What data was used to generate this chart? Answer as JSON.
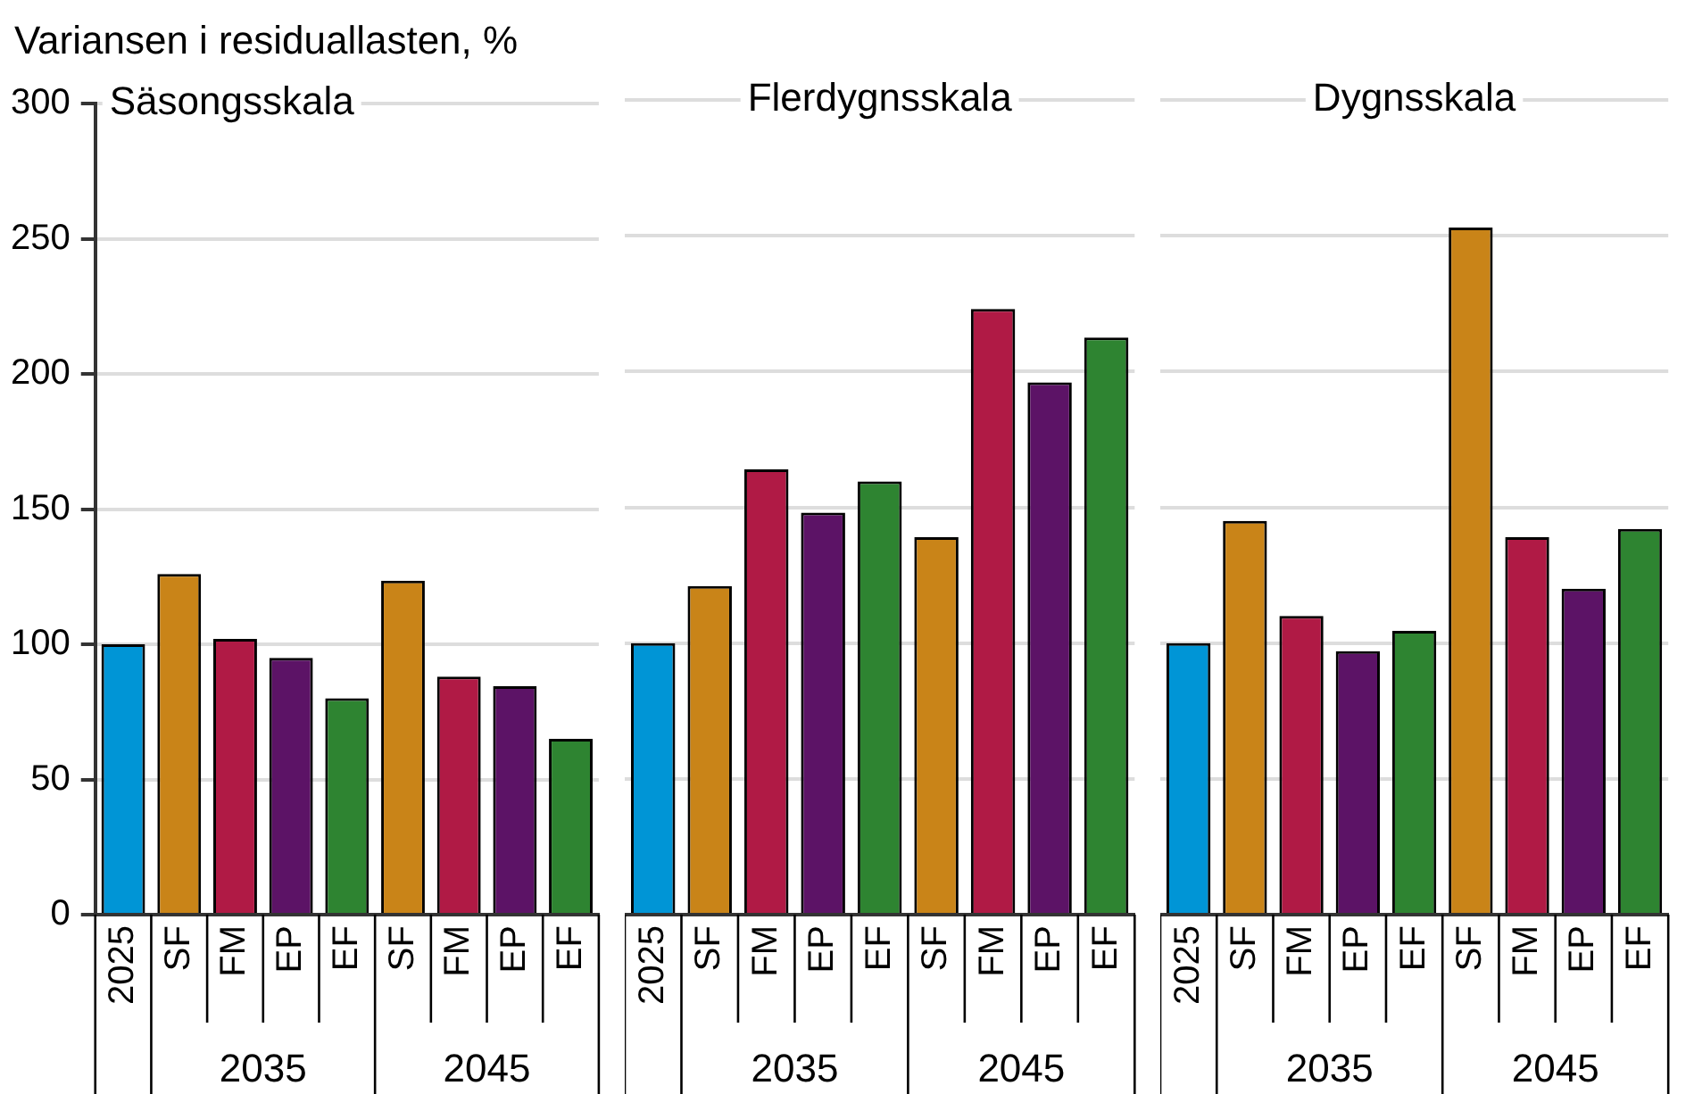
{
  "chart_data": [
    {
      "type": "bar",
      "title": "Säsongsskala",
      "ylabel": "Variansen i residuallasten, %",
      "categories": [
        "2025",
        "SF",
        "FM",
        "EP",
        "EF",
        "SF",
        "FM",
        "EP",
        "EF"
      ],
      "values": [
        100,
        126,
        102,
        95,
        80,
        123.5,
        88,
        84.5,
        65
      ],
      "colors": [
        "#0095d6",
        "#c98418",
        "#b01a45",
        "#5c1366",
        "#2e8431",
        "#c98418",
        "#b01a45",
        "#5c1366",
        "#2e8431"
      ],
      "ylim": [
        0,
        300
      ],
      "yticks": [
        0,
        50,
        100,
        150,
        200,
        250,
        300
      ],
      "grid": "y",
      "annotations": [
        "2035",
        "2045"
      ]
    },
    {
      "type": "bar",
      "title": "Flerdygnsskala",
      "categories": [
        "2025",
        "SF",
        "FM",
        "EP",
        "EF",
        "SF",
        "FM",
        "EP",
        "EF"
      ],
      "values": [
        100,
        121,
        164,
        148,
        159.5,
        139,
        223,
        196,
        212.5
      ],
      "colors": [
        "#0095d6",
        "#c98418",
        "#b01a45",
        "#5c1366",
        "#2e8431",
        "#c98418",
        "#b01a45",
        "#5c1366",
        "#2e8431"
      ],
      "ylim": [
        0,
        300
      ],
      "yticks": [
        0,
        50,
        100,
        150,
        200,
        250,
        300
      ],
      "grid": "y",
      "tick_labels": "x",
      "annotations": [
        "2035",
        "2045"
      ]
    },
    {
      "type": "bar",
      "title": "Dygnsskala",
      "categories": [
        "2025",
        "SF",
        "FM",
        "EP",
        "EF",
        "SF",
        "FM",
        "EP",
        "EF"
      ],
      "values": [
        100,
        145,
        110,
        97,
        104.5,
        253,
        139,
        120,
        142
      ],
      "colors": [
        "#0095d6",
        "#c98418",
        "#b01a45",
        "#5c1366",
        "#2e8431",
        "#c98418",
        "#b01a45",
        "#5c1366",
        "#2e8431"
      ],
      "ylim": [
        0,
        300
      ],
      "yticks": [
        0,
        50,
        100,
        150,
        200,
        250,
        300
      ],
      "grid": "y",
      "tick_labels": "x",
      "annotations": [
        "2035",
        "2045"
      ]
    }
  ]
}
